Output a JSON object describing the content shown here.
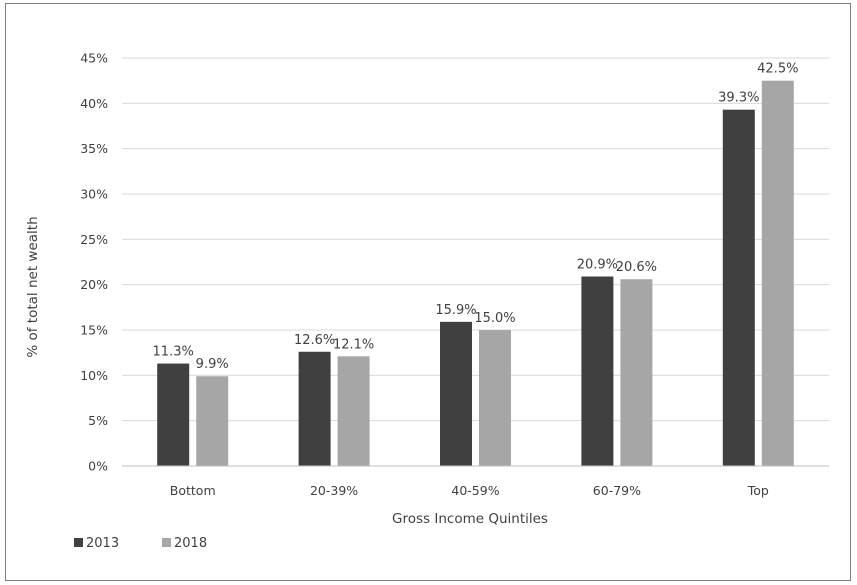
{
  "chart_data": {
    "type": "bar",
    "title": "",
    "xlabel": "Gross Income Quintiles",
    "ylabel": "% of total net wealth",
    "categories": [
      "Bottom",
      "20-39%",
      "40-59%",
      "60-79%",
      "Top"
    ],
    "series": [
      {
        "name": "2013",
        "values": [
          11.3,
          12.6,
          15.9,
          20.9,
          39.3
        ],
        "labels": [
          "11.3%",
          "12.6%",
          "15.9%",
          "20.9%",
          "39.3%"
        ],
        "color": "#404040"
      },
      {
        "name": "2018",
        "values": [
          9.9,
          12.1,
          15.0,
          20.6,
          42.5
        ],
        "labels": [
          "9.9%",
          "12.1%",
          "15.0%",
          "20.6%",
          "42.5%"
        ],
        "color": "#a6a6a6"
      }
    ],
    "ylim": [
      0,
      45
    ],
    "yticks": [
      0,
      5,
      10,
      15,
      20,
      25,
      30,
      35,
      40,
      45
    ],
    "ytick_labels": [
      "0%",
      "5%",
      "10%",
      "15%",
      "20%",
      "25%",
      "30%",
      "35%",
      "40%",
      "45%"
    ],
    "grid": true,
    "legend_position": "bottom-left",
    "gridline_color": "#d9d9d9"
  }
}
